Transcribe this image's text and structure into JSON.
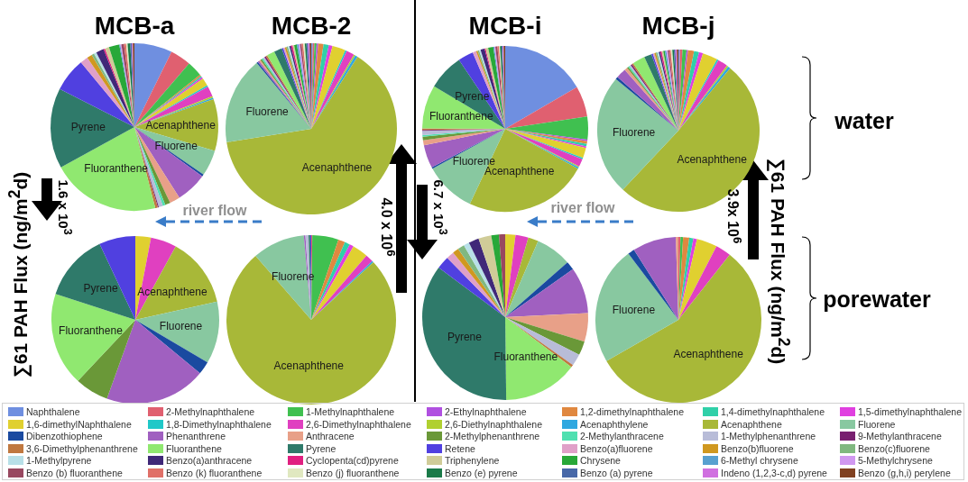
{
  "chart_data": [
    {
      "type": "pie",
      "title": "MCB-a",
      "legend": "bottom",
      "annotations": [
        "∑61 PAH Flux (ng/m$^{2}$d)",
        "1.6 x 10$^{3}$"
      ],
      "categories": [
        "Naphthalene",
        "2-Methylnaphthalene",
        "1-Methylnaphthalene",
        "2-Ethylnaphthalene",
        "1,2-dimethylnaphthalene",
        "1,4-dimethylnaphthalene",
        "1,5-dimethylnaphthalene",
        "1,6-dimethylNaphthalene",
        "1,8-Dimethylnaphthalene",
        "2,6-Dimethylnaphthalene",
        "2,6-Diethylnaphthalene",
        "Acenaphthylene",
        "Acenaphthene",
        "Fluorene",
        "Dibenzothiophene",
        "Phenanthrene",
        "Anthracene",
        "2-Methylphenanthrene",
        "2-Methylanthracene",
        "1-Methylphenanthrene",
        "9-Methylanthracene",
        "3,6-Dimethylphenanthrene",
        "Fluoranthene",
        "Pyrene",
        "Retene",
        "Benzo(a)fluorene",
        "Benzo(b)fluorene",
        "Benzo(c)fluorene",
        "1-Methylpyrene",
        "Benzo(a)anthracene",
        "Cyclopenta(cd)pyrene",
        "Triphenylene",
        "Chrysene",
        "6-Methyl chrysene",
        "5-Methylchrysene",
        "Benzo (b) fluoranthene",
        "Benzo (k) fluoranthene",
        "Benzo (j) fluoranthene",
        "Benzo (e) pyrene",
        "Benzo (a) pyrene",
        "Indeno (1,2,3-c,d) pyrene",
        "Benzo (g,h,i) perylene"
      ],
      "colors": [
        "#6f8fe0",
        "#e06070",
        "#40c050",
        "#b050e0",
        "#e08840",
        "#30d0a8",
        "#e040e0",
        "#e0d030",
        "#20c8c8",
        "#e040c0",
        "#b0d030",
        "#30a8e0",
        "#a8b838",
        "#88c8a0",
        "#1a4aa0",
        "#a060c0",
        "#e8a088",
        "#6a9838",
        "#50e0b0",
        "#b8bcd8",
        "#782070",
        "#c07840",
        "#90e870",
        "#2f7a6a",
        "#5040e0",
        "#e0a0c8",
        "#d09820",
        "#80b880",
        "#b8e0e8",
        "#402878",
        "#e02080",
        "#d0cc98",
        "#28a838",
        "#58a0d0",
        "#d098f0",
        "#984860",
        "#e07068",
        "#e0e8c0",
        "#1a7a48",
        "#4868a8",
        "#d070e0",
        "#804020"
      ],
      "values": [
        7.3,
        4,
        3,
        0,
        0.3,
        0.3,
        0.3,
        1.5,
        0.3,
        2,
        0.3,
        0.3,
        10,
        5,
        0.4,
        6,
        2,
        1,
        0.5,
        0.8,
        0.2,
        0.5,
        21,
        15.5,
        6.5,
        1.5,
        1,
        0.5,
        0.5,
        1.5,
        0.3,
        0.8,
        2,
        0.2,
        0.2,
        0.5,
        0.4,
        0.3,
        0.5,
        0.3,
        0.2,
        0.3
      ],
      "value_labels": [
        null,
        null,
        null,
        null,
        null,
        null,
        null,
        null,
        null,
        null,
        null,
        null,
        "Acenaphthene",
        "Fluorene",
        null,
        null,
        null,
        null,
        null,
        null,
        null,
        null,
        "Fluoranthene",
        "Pyrene",
        null,
        null,
        null,
        null,
        null,
        null,
        null,
        null,
        null,
        null,
        null,
        null,
        null,
        null,
        null,
        null,
        null,
        null
      ]
    },
    {
      "type": "pie",
      "title": "MCB-2",
      "annotations": [
        "4.0 x 10$^{6}$"
      ],
      "categories": [
        null,
        null,
        null,
        null,
        null,
        null,
        null,
        null,
        null,
        null,
        null,
        null,
        null,
        null,
        null,
        null,
        null,
        null,
        null,
        null,
        null,
        null,
        null,
        null,
        null,
        null,
        null,
        null,
        null,
        null,
        null,
        null,
        null,
        null,
        null,
        null,
        null,
        null,
        null,
        null,
        null,
        null
      ],
      "colors": [
        "#6f8fe0",
        "#e06070",
        "#40c050",
        "#b050e0",
        "#e08840",
        "#30d0a8",
        "#e040e0",
        "#e0d030",
        "#20c8c8",
        "#e040c0",
        "#b0d030",
        "#30a8e0",
        "#a8b838",
        "#88c8a0",
        "#1a4aa0",
        "#a060c0",
        "#e8a088",
        "#6a9838",
        "#50e0b0",
        "#b8bcd8",
        "#782070",
        "#c07840",
        "#90e870",
        "#2f7a6a",
        "#5040e0",
        "#e0a0c8",
        "#d09820",
        "#80b880",
        "#b8e0e8",
        "#402878",
        "#e02080",
        "#d0cc98",
        "#28a838",
        "#58a0d0",
        "#d098f0",
        "#984860",
        "#e07068",
        "#e0e8c0",
        "#1a7a48",
        "#4868a8",
        "#d070e0",
        "#804020"
      ],
      "values": [
        0.3,
        0.3,
        0.4,
        0.3,
        1,
        1,
        0.7,
        2.5,
        0.3,
        1.5,
        0.3,
        0.5,
        63.4,
        16.5,
        0.3,
        0.3,
        0.3,
        0.3,
        0.3,
        0.3,
        0.3,
        0.3,
        1.5,
        1.5,
        0.3,
        0.3,
        0.3,
        0.3,
        0.3,
        0.3,
        0.3,
        0.3,
        0.5,
        0.3,
        0.3,
        0.3,
        0.3,
        0.3,
        0.3,
        0.3,
        0.3,
        0.3
      ],
      "value_labels": [
        null,
        null,
        null,
        null,
        null,
        null,
        null,
        null,
        null,
        null,
        null,
        null,
        "Acenaphthene",
        "Fluorene",
        null,
        null,
        null,
        null,
        null,
        null,
        null,
        null,
        null,
        null,
        null,
        null,
        null,
        null,
        null,
        null,
        null,
        null,
        null,
        null,
        null,
        null,
        null,
        null,
        null,
        null,
        null,
        null
      ]
    },
    {
      "type": "pie",
      "title": "MCB-i",
      "annotations": [
        "6.7 x 10$^{3}$"
      ],
      "categories": [
        null,
        null,
        null,
        null,
        null,
        null,
        null,
        null,
        null,
        null,
        null,
        null,
        null,
        null,
        null,
        null,
        null,
        null,
        null,
        null,
        null,
        null,
        null,
        null,
        null,
        null,
        null,
        null,
        null,
        null,
        null,
        null,
        null,
        null,
        null,
        null,
        null,
        null,
        null,
        null,
        null,
        null
      ],
      "colors": [
        "#6f8fe0",
        "#e06070",
        "#40c050",
        "#b050e0",
        "#e08840",
        "#30d0a8",
        "#e040e0",
        "#e0d030",
        "#20c8c8",
        "#e040c0",
        "#b0d030",
        "#30a8e0",
        "#a8b838",
        "#88c8a0",
        "#1a4aa0",
        "#a060c0",
        "#e8a088",
        "#6a9838",
        "#50e0b0",
        "#b8bcd8",
        "#782070",
        "#c07840",
        "#90e870",
        "#2f7a6a",
        "#5040e0",
        "#e0a0c8",
        "#d09820",
        "#80b880",
        "#b8e0e8",
        "#402878",
        "#e02080",
        "#d0cc98",
        "#28a838",
        "#58a0d0",
        "#d098f0",
        "#984860",
        "#e07068",
        "#e0e8c0",
        "#1a7a48",
        "#4868a8",
        "#d070e0",
        "#804020"
      ],
      "values": [
        16.6,
        6,
        4.5,
        0.3,
        0.5,
        0.5,
        0.3,
        2,
        0.3,
        1.5,
        0.2,
        0.3,
        24,
        10,
        0.3,
        4.5,
        1,
        0.7,
        0.3,
        0.8,
        0.2,
        0.3,
        8.5,
        7,
        3,
        0.7,
        0.3,
        0.3,
        0.3,
        0.8,
        0.2,
        0.5,
        1,
        0.2,
        0.2,
        0.4,
        0.3,
        0.2,
        0.3,
        0.2,
        0.2,
        0.3
      ],
      "value_labels": [
        null,
        null,
        null,
        null,
        null,
        null,
        null,
        null,
        null,
        null,
        null,
        null,
        "Acenaphthene",
        "Fluorene",
        null,
        null,
        null,
        null,
        null,
        null,
        null,
        null,
        "Fluoranthene",
        "Pyrene",
        null,
        null,
        null,
        null,
        null,
        null,
        null,
        null,
        null,
        null,
        null,
        null,
        null,
        null,
        null,
        null,
        null,
        null
      ]
    },
    {
      "type": "pie",
      "title": "MCB-j",
      "annotations": [
        "3.9x 10$^{6}$",
        "∑61 PAH Flux (ng/m$^{2}$d)",
        "water"
      ],
      "categories": [
        null,
        null,
        null,
        null,
        null,
        null,
        null,
        null,
        null,
        null,
        null,
        null,
        null,
        null,
        null,
        null,
        null,
        null,
        null,
        null,
        null,
        null,
        null,
        null,
        null,
        null,
        null,
        null,
        null,
        null,
        null,
        null,
        null,
        null,
        null,
        null,
        null,
        null,
        null,
        null,
        null,
        null
      ],
      "colors": [
        "#6f8fe0",
        "#e06070",
        "#40c050",
        "#b050e0",
        "#e08840",
        "#30d0a8",
        "#e040e0",
        "#e0d030",
        "#20c8c8",
        "#e040c0",
        "#b0d030",
        "#30a8e0",
        "#a8b838",
        "#88c8a0",
        "#1a4aa0",
        "#a060c0",
        "#e8a088",
        "#6a9838",
        "#50e0b0",
        "#b8bcd8",
        "#782070",
        "#c07840",
        "#90e870",
        "#2f7a6a",
        "#5040e0",
        "#e0a0c8",
        "#d09820",
        "#80b880",
        "#b8e0e8",
        "#402878",
        "#e02080",
        "#d0cc98",
        "#28a838",
        "#58a0d0",
        "#d098f0",
        "#984860",
        "#e07068",
        "#e0e8c0",
        "#1a7a48",
        "#4868a8",
        "#d070e0",
        "#804020"
      ],
      "values": [
        0.3,
        0.5,
        0.8,
        0.3,
        1.2,
        1,
        0.8,
        3,
        0.3,
        2,
        0.3,
        0.5,
        51,
        24,
        0.5,
        2,
        0.6,
        0.3,
        0.3,
        0.3,
        0.3,
        0.3,
        2.5,
        1.5,
        0.3,
        0.3,
        0.3,
        0.3,
        0.3,
        0.3,
        0.3,
        0.3,
        0.3,
        0.3,
        0.3,
        0.3,
        0.3,
        0.3,
        0.3,
        0.3,
        0.3,
        0.3
      ],
      "value_labels": [
        null,
        null,
        null,
        null,
        null,
        null,
        null,
        null,
        null,
        null,
        null,
        null,
        "Acenaphthene",
        "Fluorene",
        null,
        null,
        null,
        null,
        null,
        null,
        null,
        null,
        null,
        null,
        null,
        null,
        null,
        null,
        null,
        null,
        null,
        null,
        null,
        null,
        null,
        null,
        null,
        null,
        null,
        null,
        null,
        null
      ]
    },
    {
      "type": "pie",
      "categories": [
        null,
        null,
        null,
        null,
        null,
        null,
        null,
        null,
        null,
        null,
        null,
        null,
        null,
        null,
        null,
        null,
        null,
        null,
        null,
        null,
        null,
        null,
        null,
        null,
        null,
        null,
        null,
        null,
        null,
        null,
        null,
        null,
        null,
        null,
        null,
        null,
        null,
        null,
        null,
        null,
        null,
        null
      ],
      "colors": [
        "#6f8fe0",
        "#e06070",
        "#40c050",
        "#b050e0",
        "#e08840",
        "#30d0a8",
        "#e040e0",
        "#e0d030",
        "#20c8c8",
        "#e040c0",
        "#b0d030",
        "#30a8e0",
        "#a8b838",
        "#88c8a0",
        "#1a4aa0",
        "#a060c0",
        "#e8a088",
        "#6a9838",
        "#50e0b0",
        "#b8bcd8",
        "#782070",
        "#c07840",
        "#90e870",
        "#2f7a6a",
        "#5040e0",
        "#e0a0c8",
        "#d09820",
        "#80b880",
        "#b8e0e8",
        "#402878",
        "#e02080",
        "#d0cc98",
        "#28a838",
        "#58a0d0",
        "#d098f0",
        "#984860",
        "#e07068",
        "#e0e8c0",
        "#1a7a48",
        "#4868a8",
        "#d070e0",
        "#804020"
      ],
      "values": [
        0,
        0,
        0,
        0,
        0,
        0,
        0,
        3,
        0,
        5,
        0,
        0,
        13.5,
        12,
        2.5,
        19.5,
        0,
        6.5,
        0,
        0,
        0,
        0,
        18,
        13,
        7,
        0,
        0,
        0,
        0,
        0,
        0,
        0,
        0,
        0,
        0,
        0,
        0,
        0,
        0,
        0,
        0,
        0
      ],
      "value_labels": [
        null,
        null,
        null,
        null,
        null,
        null,
        null,
        null,
        null,
        null,
        null,
        null,
        "Acenaphthene",
        "Fluorene",
        null,
        null,
        null,
        null,
        null,
        null,
        null,
        null,
        "Fluoranthene",
        "Pyrene",
        null,
        null,
        null,
        null,
        null,
        null,
        null,
        null,
        null,
        null,
        null,
        null,
        null,
        null,
        null,
        null,
        null,
        null
      ]
    },
    {
      "type": "pie",
      "annotations": [
        "river flow"
      ],
      "categories": [
        null,
        null,
        null,
        null,
        null,
        null,
        null,
        null,
        null,
        null,
        null,
        null,
        null,
        null,
        null,
        null,
        null,
        null,
        null,
        null,
        null,
        null,
        null,
        null,
        null,
        null,
        null,
        null,
        null,
        null,
        null,
        null,
        null,
        null,
        null,
        null,
        null,
        null,
        null,
        null,
        null,
        null
      ],
      "colors": [
        "#6f8fe0",
        "#e06070",
        "#40c050",
        "#b050e0",
        "#e08840",
        "#30d0a8",
        "#e040e0",
        "#e0d030",
        "#20c8c8",
        "#e040c0",
        "#b0d030",
        "#30a8e0",
        "#a8b838",
        "#88c8a0",
        "#1a4aa0",
        "#a060c0",
        "#e8a088",
        "#6a9838",
        "#50e0b0",
        "#b8bcd8",
        "#782070",
        "#c07840",
        "#90e870",
        "#2f7a6a",
        "#5040e0",
        "#e0a0c8",
        "#d09820",
        "#80b880",
        "#b8e0e8",
        "#402878",
        "#e02080",
        "#d0cc98",
        "#28a838",
        "#58a0d0",
        "#d098f0",
        "#984860",
        "#e07068",
        "#e0e8c0",
        "#1a7a48",
        "#4868a8",
        "#d070e0",
        "#804020"
      ],
      "values": [
        0,
        0.2,
        5,
        0,
        1.3,
        1,
        0.8,
        3,
        0,
        1.5,
        0,
        0.3,
        75.5,
        10,
        0,
        0.3,
        0,
        0,
        0,
        0.6,
        0,
        0,
        0,
        0.3,
        0.2,
        0,
        0,
        0,
        0,
        0,
        0,
        0,
        0,
        0,
        0,
        0,
        0,
        0,
        0,
        0,
        0,
        0
      ],
      "value_labels": [
        null,
        null,
        null,
        null,
        null,
        null,
        null,
        null,
        null,
        null,
        null,
        null,
        "Acenaphthene",
        "Fluorene",
        null,
        null,
        null,
        null,
        null,
        null,
        null,
        null,
        null,
        null,
        null,
        null,
        null,
        null,
        null,
        null,
        null,
        null,
        null,
        null,
        null,
        null,
        null,
        null,
        null,
        null,
        null,
        null
      ]
    },
    {
      "type": "pie",
      "categories": [
        null,
        null,
        null,
        null,
        null,
        null,
        null,
        null,
        null,
        null,
        null,
        null,
        null,
        null,
        null,
        null,
        null,
        null,
        null,
        null,
        null,
        null,
        null,
        null,
        null,
        null,
        null,
        null,
        null,
        null,
        null,
        null,
        null,
        null,
        null,
        null,
        null,
        null,
        null,
        null,
        null,
        null
      ],
      "colors": [
        "#6f8fe0",
        "#e06070",
        "#40c050",
        "#b050e0",
        "#e08840",
        "#30d0a8",
        "#e040e0",
        "#e0d030",
        "#20c8c8",
        "#e040c0",
        "#b0d030",
        "#30a8e0",
        "#a8b838",
        "#88c8a0",
        "#1a4aa0",
        "#a060c0",
        "#e8a088",
        "#6a9838",
        "#50e0b0",
        "#b8bcd8",
        "#782070",
        "#c07840",
        "#90e870",
        "#2f7a6a",
        "#5040e0",
        "#e0a0c8",
        "#d09820",
        "#80b880",
        "#b8e0e8",
        "#402878",
        "#e02080",
        "#d0cc98",
        "#28a838",
        "#58a0d0",
        "#d098f0",
        "#984860",
        "#e07068",
        "#e0e8c0",
        "#1a7a48",
        "#4868a8",
        "#d070e0",
        "#804020"
      ],
      "values": [
        0,
        0,
        0,
        0,
        0,
        0,
        0,
        2,
        0,
        2.5,
        0,
        0,
        2,
        7,
        1.7,
        9,
        5.6,
        2.7,
        0,
        2.3,
        0,
        0.5,
        14.5,
        35.4,
        2.5,
        1.5,
        1.2,
        1.3,
        1.1,
        2,
        0,
        2.5,
        1.5,
        0,
        0,
        1.2,
        0,
        0,
        0,
        0,
        0,
        0
      ],
      "value_labels": [
        null,
        null,
        null,
        null,
        null,
        null,
        null,
        null,
        null,
        null,
        null,
        null,
        null,
        null,
        null,
        null,
        null,
        null,
        null,
        null,
        null,
        null,
        "Fluoranthene",
        "Pyrene",
        null,
        null,
        null,
        null,
        null,
        null,
        null,
        null,
        null,
        null,
        null,
        null,
        null,
        null,
        null,
        null,
        null,
        null
      ]
    },
    {
      "type": "pie",
      "annotations": [
        "river flow",
        "porewater"
      ],
      "categories": [
        null,
        null,
        null,
        null,
        null,
        null,
        null,
        null,
        null,
        null,
        null,
        null,
        null,
        null,
        null,
        null,
        null,
        null,
        null,
        null,
        null,
        null,
        null,
        null,
        null,
        null,
        null,
        null,
        null,
        null,
        null,
        null,
        null,
        null,
        null,
        null,
        null,
        null,
        null,
        null,
        null,
        null
      ],
      "colors": [
        "#6f8fe0",
        "#e06070",
        "#40c050",
        "#b050e0",
        "#e08840",
        "#30d0a8",
        "#e040e0",
        "#e0d030",
        "#20c8c8",
        "#e040c0",
        "#b0d030",
        "#30a8e0",
        "#a8b838",
        "#88c8a0",
        "#1a4aa0",
        "#a060c0",
        "#e8a088",
        "#6a9838",
        "#50e0b0",
        "#b8bcd8",
        "#782070",
        "#c07840",
        "#90e870",
        "#2f7a6a",
        "#5040e0",
        "#e0a0c8",
        "#d09820",
        "#80b880",
        "#b8e0e8",
        "#402878",
        "#e02080",
        "#d0cc98",
        "#28a838",
        "#58a0d0",
        "#d098f0",
        "#984860",
        "#e07068",
        "#e0e8c0",
        "#1a7a48",
        "#4868a8",
        "#d070e0",
        "#804020"
      ],
      "values": [
        0,
        0.4,
        0.5,
        0,
        1.2,
        0.8,
        0.7,
        4,
        0,
        3,
        0,
        0,
        56.1,
        23,
        1.3,
        8.5,
        0.5,
        0,
        0,
        0,
        0,
        0,
        0,
        0,
        0,
        0,
        0,
        0,
        0,
        0,
        0,
        0,
        0,
        0,
        0,
        0,
        0,
        0,
        0,
        0,
        0,
        0
      ],
      "value_labels": [
        null,
        null,
        null,
        null,
        null,
        null,
        null,
        null,
        null,
        null,
        null,
        null,
        "Acenaphthene",
        "Fluorene",
        null,
        null,
        null,
        null,
        null,
        null,
        null,
        null,
        null,
        null,
        null,
        null,
        null,
        null,
        null,
        null,
        null,
        null,
        null,
        null,
        null,
        null,
        null,
        null,
        null,
        null,
        null,
        null
      ]
    }
  ]
}
